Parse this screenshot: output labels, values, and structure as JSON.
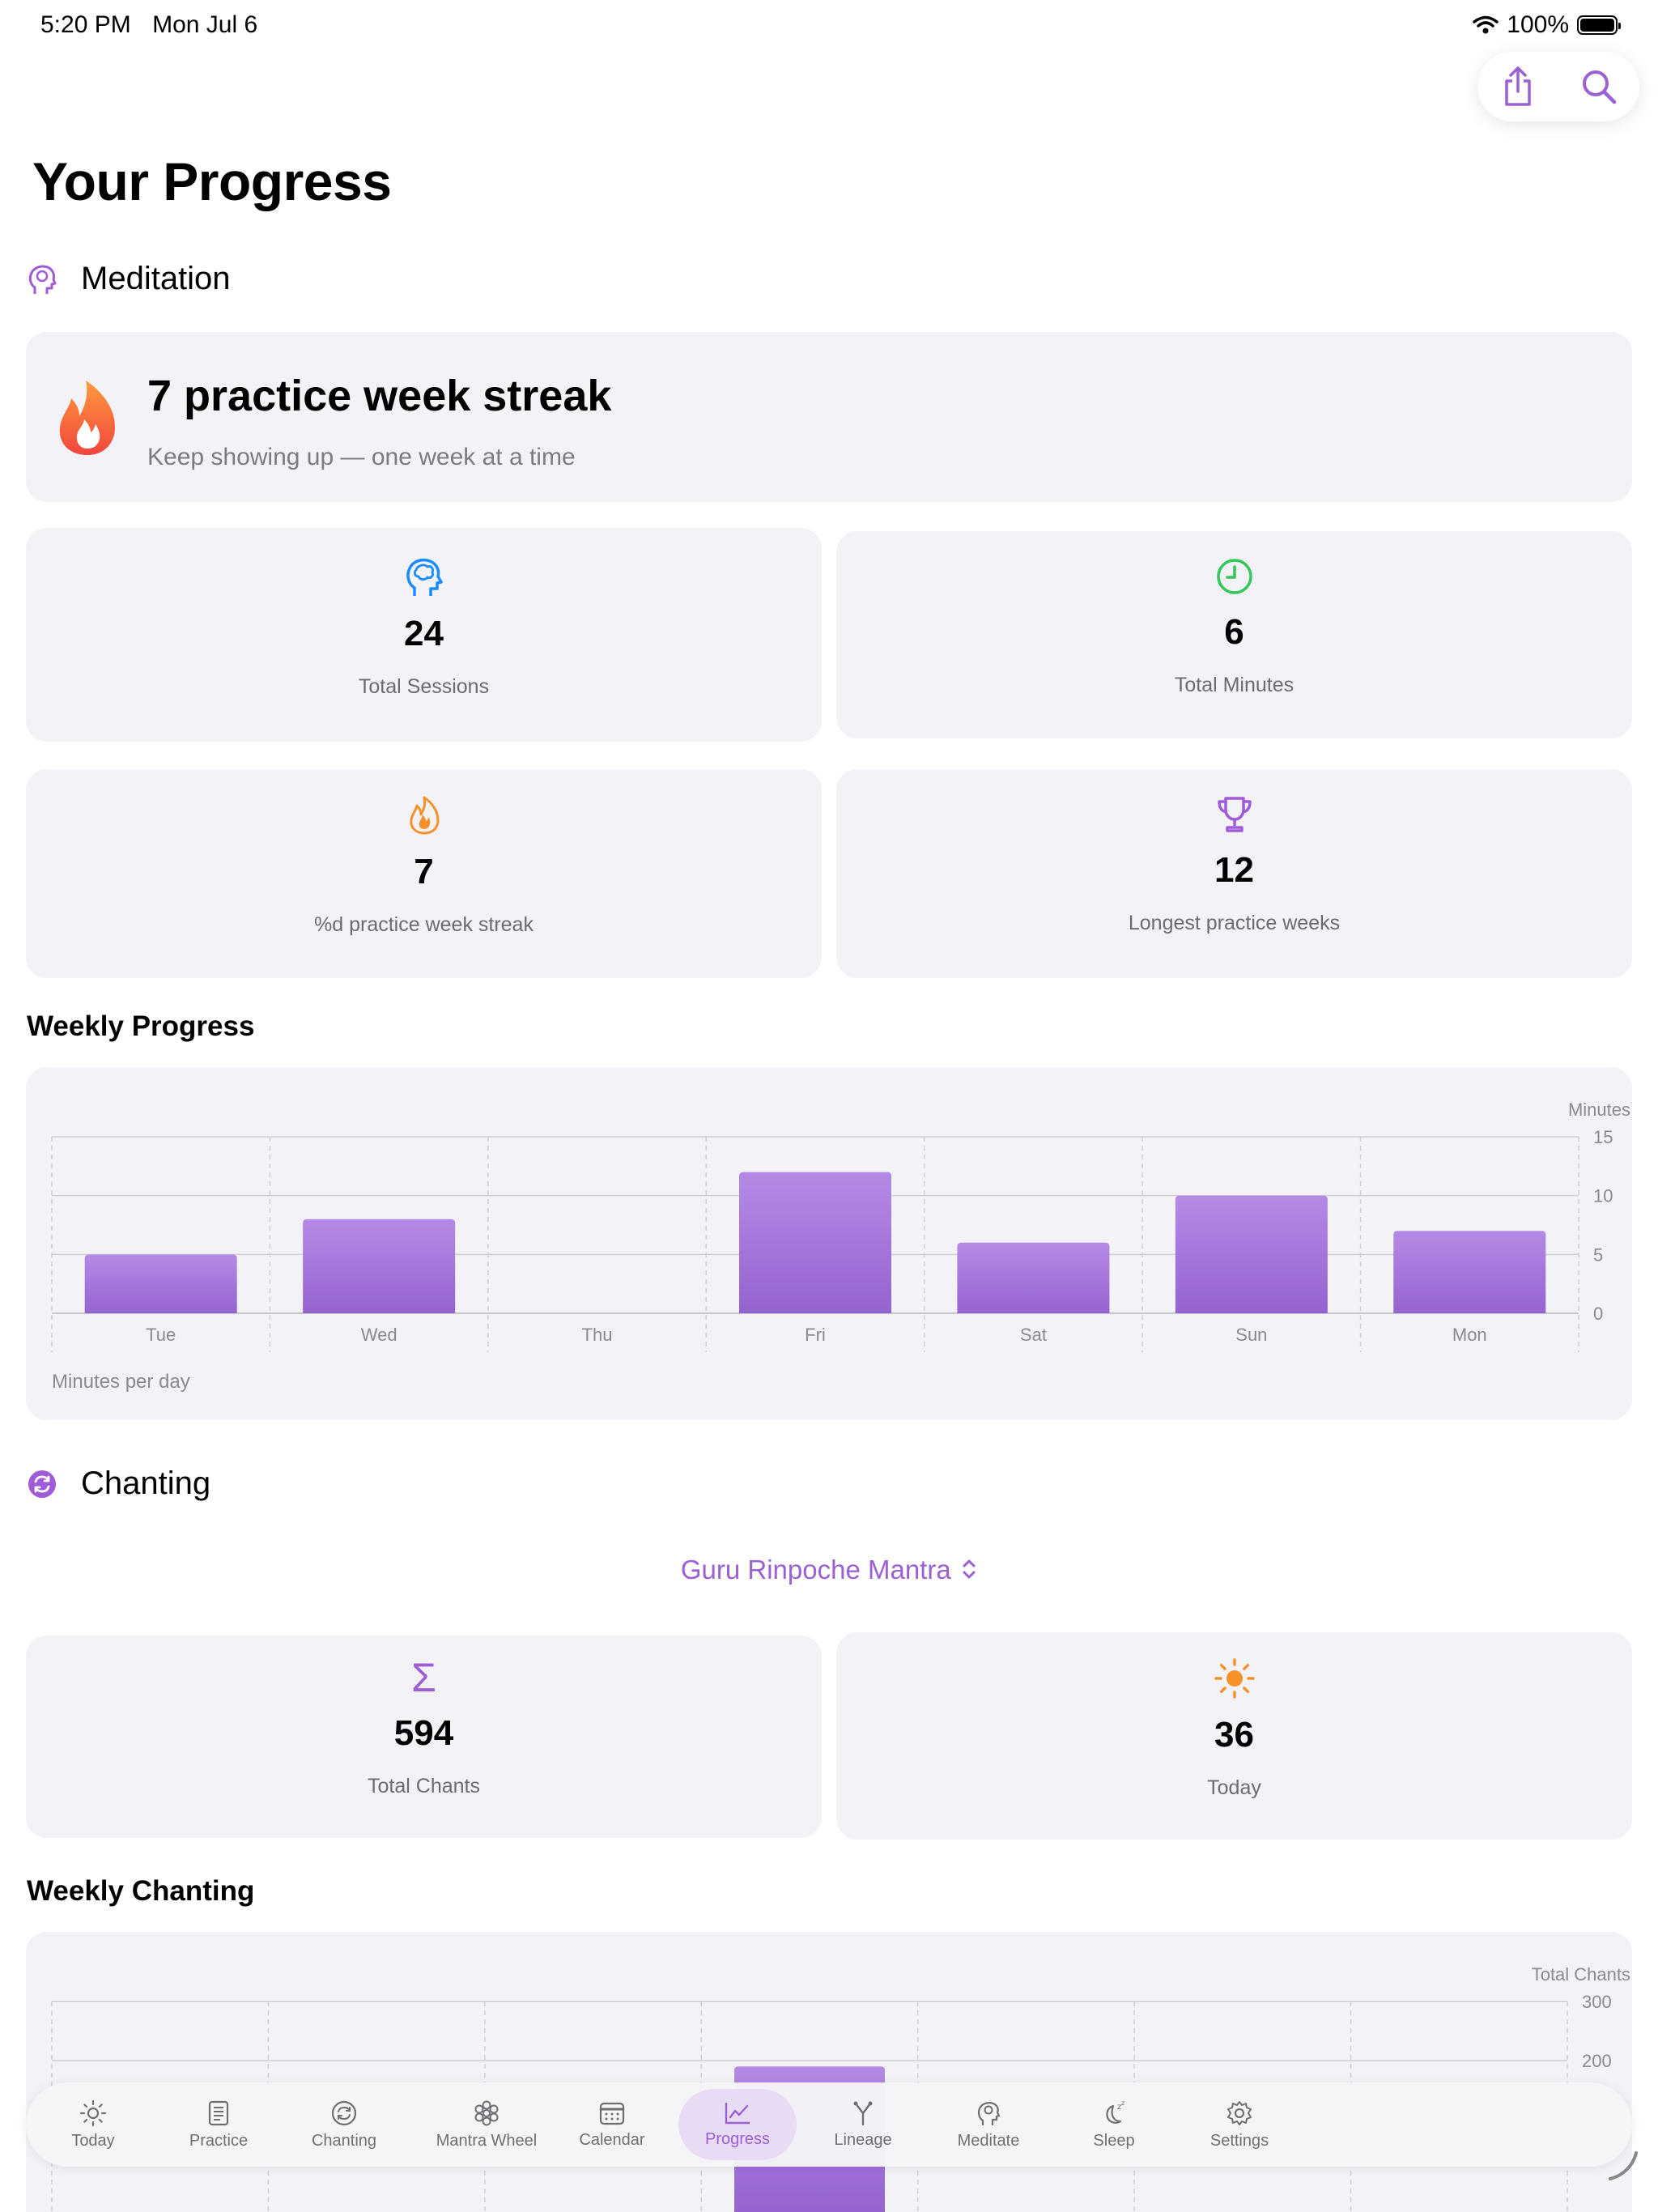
{
  "status_bar": {
    "time": "5:20 PM",
    "date": "Mon Jul 6",
    "battery": "100%"
  },
  "toolbar": {
    "share_icon": "share-icon",
    "search_icon": "search-icon"
  },
  "page": {
    "title": "Your Progress"
  },
  "meditation": {
    "heading": "Meditation",
    "streak": {
      "title": "7 practice week streak",
      "subtitle": "Keep showing up — one week at a time"
    },
    "stats": [
      {
        "icon": "brain-icon",
        "value": "24",
        "label": "Total Sessions",
        "color": "#1a8cff"
      },
      {
        "icon": "clock-icon",
        "value": "6",
        "label": "Total Minutes",
        "color": "#34c759"
      },
      {
        "icon": "flame-icon",
        "value": "7",
        "label": "%d practice week streak",
        "color": "#f7922a"
      },
      {
        "icon": "trophy-icon",
        "value": "12",
        "label": "Longest practice weeks",
        "color": "#a05cd8"
      }
    ]
  },
  "weekly_progress": {
    "heading": "Weekly Progress",
    "chart_data": {
      "type": "bar",
      "categories": [
        "Tue",
        "Wed",
        "Thu",
        "Fri",
        "Sat",
        "Sun",
        "Mon"
      ],
      "values": [
        5,
        8,
        0,
        12,
        6,
        10,
        7
      ],
      "ylabel": "Minutes",
      "yticks": [
        0,
        5,
        10,
        15
      ],
      "ylim": [
        0,
        15
      ],
      "caption": "Minutes per day",
      "bar_color": "#a06ad6",
      "grid": true
    }
  },
  "chanting": {
    "heading": "Chanting",
    "mantra_selector": "Guru Rinpoche Mantra",
    "stats": [
      {
        "icon": "sigma-icon",
        "value": "594",
        "label": "Total Chants",
        "color": "#a05cd8"
      },
      {
        "icon": "sun-icon",
        "value": "36",
        "label": "Today",
        "color": "#f7922a"
      }
    ]
  },
  "weekly_chanting": {
    "heading": "Weekly Chanting",
    "chart_data": {
      "type": "bar",
      "ylabel": "Total Chants",
      "yticks_visible": [
        200,
        300
      ],
      "ylim": [
        0,
        300
      ],
      "visible_bar_index": 3,
      "visible_bar_value": 190,
      "bar_color": "#a06ad6"
    }
  },
  "tabs": [
    {
      "label": "Today",
      "icon": "sun-icon",
      "active": false
    },
    {
      "label": "Practice",
      "icon": "book-icon",
      "active": false
    },
    {
      "label": "Chanting",
      "icon": "repeat-icon",
      "active": false
    },
    {
      "label": "Mantra Wheel",
      "icon": "flower-icon",
      "active": false
    },
    {
      "label": "Calendar",
      "icon": "calendar-icon",
      "active": false
    },
    {
      "label": "Progress",
      "icon": "chart-icon",
      "active": true
    },
    {
      "label": "Lineage",
      "icon": "lineage-icon",
      "active": false
    },
    {
      "label": "Meditate",
      "icon": "head-icon",
      "active": false
    },
    {
      "label": "Sleep",
      "icon": "moon-icon",
      "active": false
    },
    {
      "label": "Settings",
      "icon": "gear-icon",
      "active": false
    }
  ],
  "theme": {
    "accent": "#9b5fd6",
    "card_bg": "#f2f2f7"
  }
}
